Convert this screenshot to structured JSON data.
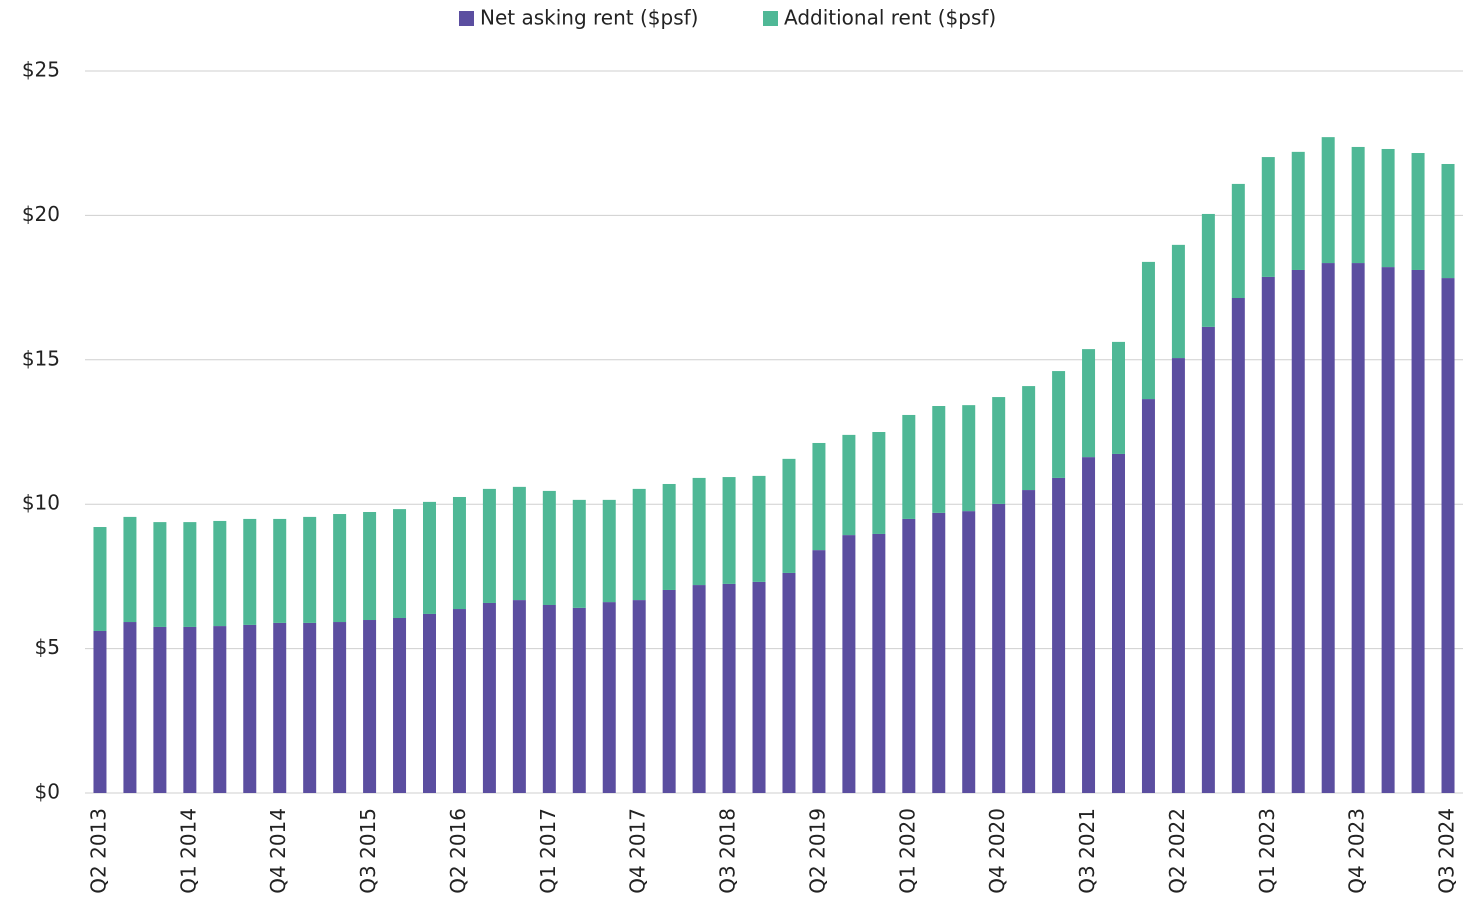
{
  "chart_data": {
    "type": "stacked_bar",
    "categories": [
      "Q2 2013",
      null,
      null,
      "Q1 2014",
      null,
      null,
      "Q4 2014",
      null,
      null,
      "Q3 2015",
      null,
      null,
      "Q2 2016",
      null,
      null,
      "Q1 2017",
      null,
      null,
      "Q4 2017",
      null,
      null,
      "Q3 2018",
      null,
      null,
      "Q2 2019",
      null,
      null,
      "Q1 2020",
      null,
      null,
      "Q4 2020",
      null,
      null,
      "Q3 2021",
      null,
      null,
      "Q2 2022",
      null,
      null,
      "Q1 2023",
      null,
      null,
      "Q4 2023",
      null,
      null,
      "Q3 2024"
    ],
    "series": [
      {
        "name": "Net asking rent ($psf)",
        "color": "#5b4ea0",
        "values": [
          5.61,
          5.92,
          5.75,
          5.75,
          5.78,
          5.82,
          5.89,
          5.89,
          5.92,
          5.99,
          6.06,
          6.2,
          6.37,
          6.58,
          6.68,
          6.51,
          6.41,
          6.61,
          6.68,
          7.03,
          7.2,
          7.24,
          7.31,
          7.62,
          8.41,
          8.93,
          8.97,
          9.49,
          9.7,
          9.76,
          10.01,
          10.49,
          10.91,
          11.63,
          11.74,
          13.64,
          15.06,
          16.14,
          17.14,
          17.87,
          18.11,
          18.35,
          18.35,
          18.21,
          18.11,
          17.83
        ]
      },
      {
        "name": "Additional rent ($psf)",
        "color": "#4fb896",
        "values": [
          3.6,
          3.64,
          3.63,
          3.63,
          3.64,
          3.67,
          3.6,
          3.67,
          3.74,
          3.74,
          3.77,
          3.88,
          3.88,
          3.95,
          3.92,
          3.95,
          3.74,
          3.54,
          3.85,
          3.67,
          3.71,
          3.7,
          3.67,
          3.95,
          3.71,
          3.47,
          3.53,
          3.6,
          3.7,
          3.67,
          3.7,
          3.6,
          3.7,
          3.74,
          3.88,
          4.75,
          3.92,
          3.91,
          3.95,
          4.15,
          4.09,
          4.36,
          4.02,
          4.09,
          4.05,
          3.95
        ]
      }
    ],
    "ylim": [
      0,
      25
    ],
    "yticks": [
      {
        "value": 0,
        "label": "$0"
      },
      {
        "value": 5,
        "label": "$5"
      },
      {
        "value": 10,
        "label": "$10"
      },
      {
        "value": 15,
        "label": "$15"
      },
      {
        "value": 20,
        "label": "$20"
      },
      {
        "value": 25,
        "label": "$25"
      }
    ],
    "grid": true,
    "legend": "top"
  }
}
